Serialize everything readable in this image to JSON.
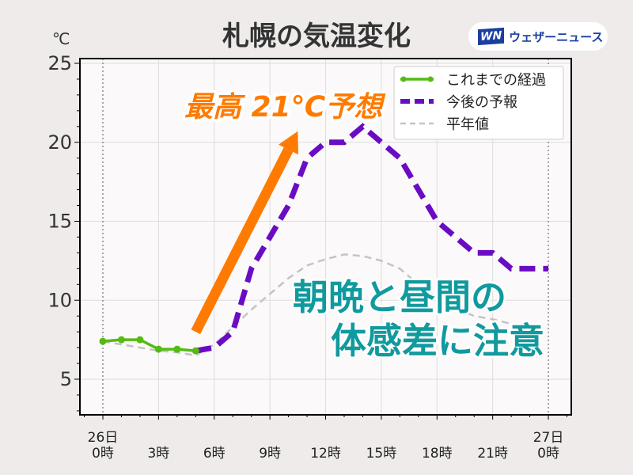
{
  "header": {
    "title": "札幌の気温変化",
    "logo_text": "ウェザーニュース",
    "logo_mark": "WN"
  },
  "chart_data": {
    "type": "line",
    "title": "札幌の気温変化",
    "ylabel": "℃",
    "ylim": [
      2.7,
      25.3
    ],
    "xlim": [
      -1.2,
      25.2
    ],
    "yticks": [
      5,
      10,
      15,
      20,
      25
    ],
    "xticks": [
      {
        "x": 0,
        "label": [
          "26日",
          "0時"
        ]
      },
      {
        "x": 3,
        "label": [
          "3時"
        ]
      },
      {
        "x": 6,
        "label": [
          "6時"
        ]
      },
      {
        "x": 9,
        "label": [
          "9時"
        ]
      },
      {
        "x": 12,
        "label": [
          "12時"
        ]
      },
      {
        "x": 15,
        "label": [
          "15時"
        ]
      },
      {
        "x": 18,
        "label": [
          "18時"
        ]
      },
      {
        "x": 21,
        "label": [
          "21時"
        ]
      },
      {
        "x": 24,
        "label": [
          "27日",
          "0時"
        ]
      }
    ],
    "grid": true,
    "legend_position": "top-right",
    "series": [
      {
        "name": "これまでの経過",
        "color": "#55bb11",
        "style": "solid-markers",
        "x": [
          0,
          1,
          2,
          3,
          4,
          5
        ],
        "y": [
          7.4,
          7.5,
          7.5,
          6.9,
          6.9,
          6.8
        ]
      },
      {
        "name": "今後の予報",
        "color": "#6a0cc4",
        "style": "dashed-thick",
        "x": [
          5,
          6,
          7,
          8,
          9,
          10,
          11,
          12,
          13,
          14,
          15,
          16,
          17,
          18,
          19,
          20,
          21,
          22,
          23,
          24
        ],
        "y": [
          6.8,
          7.0,
          8.0,
          12,
          14,
          16,
          19,
          20,
          20,
          21,
          20,
          19,
          17,
          15,
          14,
          13,
          13,
          12,
          12,
          12
        ]
      },
      {
        "name": "平年値",
        "color": "#c4c4c4",
        "style": "dashed-thin",
        "x": [
          0,
          1,
          2,
          3,
          4,
          5,
          6,
          7,
          8,
          9,
          10,
          11,
          12,
          13,
          14,
          15,
          16,
          17,
          18,
          19,
          20,
          21,
          22,
          23,
          24
        ],
        "y": [
          7.4,
          7.2,
          7.0,
          6.8,
          6.7,
          6.5,
          7.2,
          8.3,
          9.4,
          10.4,
          11.4,
          12.2,
          12.6,
          12.9,
          12.8,
          12.5,
          12.0,
          11.0,
          10.2,
          9.5,
          9.0,
          8.8,
          8.5,
          8.2,
          8.0
        ]
      }
    ],
    "annotations": [
      {
        "text": "最高 21℃予想",
        "color": "#ff7a00"
      },
      {
        "text": "朝晩と昼間の",
        "color": "#119a9e"
      },
      {
        "text": "体感差に注意",
        "color": "#119a9e"
      }
    ],
    "arrow": {
      "from": [
        5,
        8
      ],
      "to": [
        10.5,
        20.7
      ],
      "color": "#ff7a00"
    }
  }
}
